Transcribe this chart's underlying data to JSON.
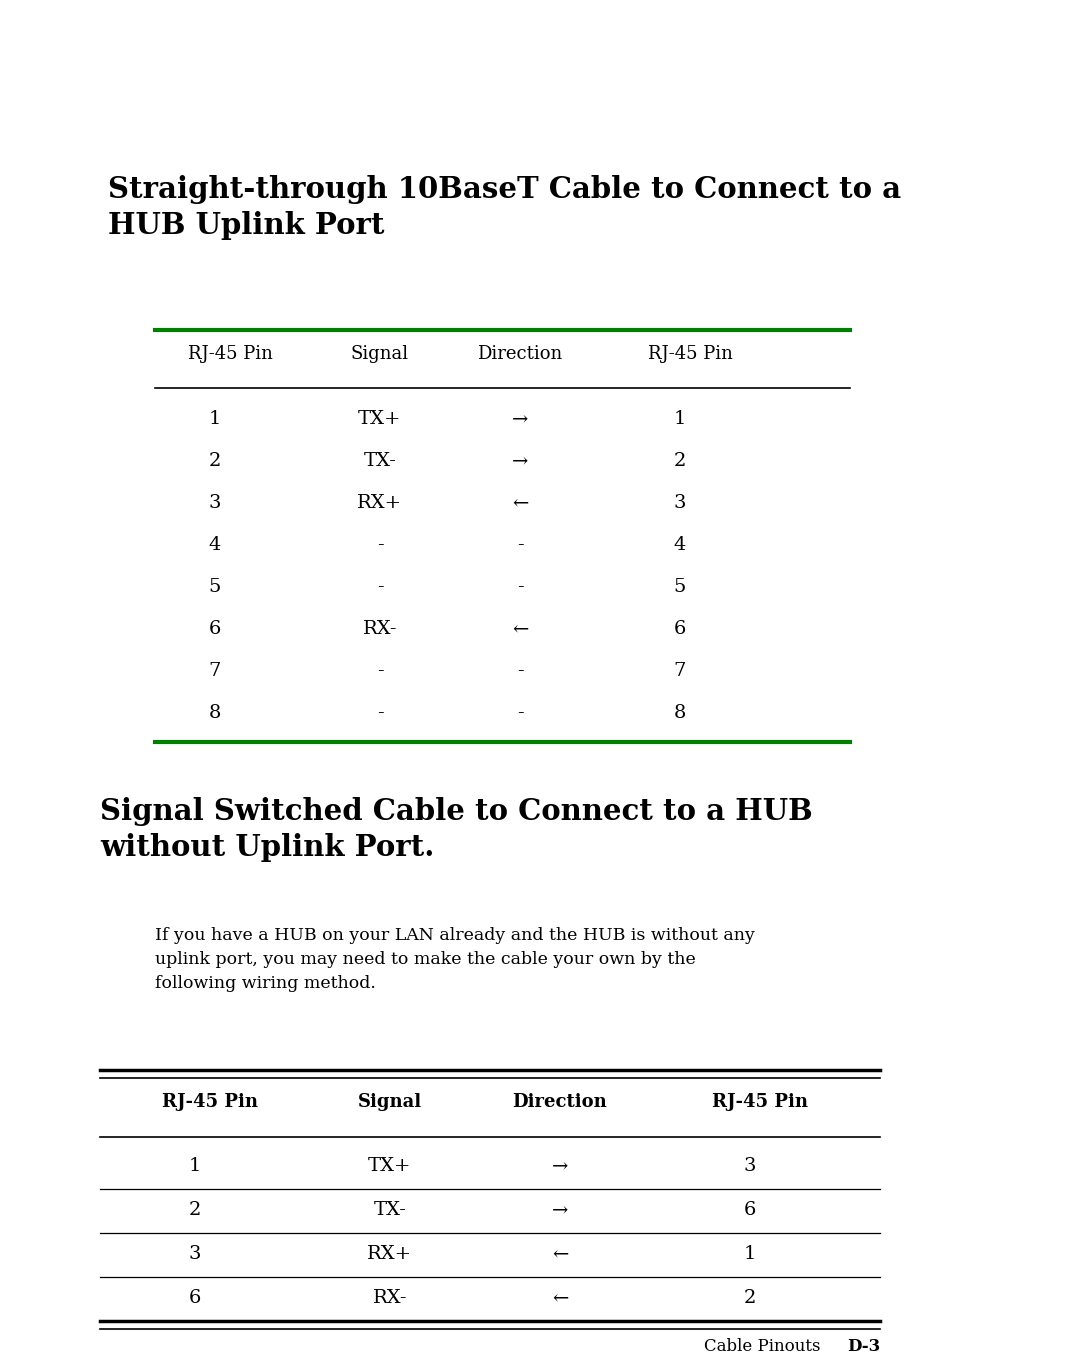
{
  "page_bg": "#ffffff",
  "title1": "Straight-through 10BaseT Cable to Connect to a\nHUB Uplink Port",
  "title2": "Signal Switched Cable to Connect to a HUB\nwithout Uplink Port.",
  "body_text": "If you have a HUB on your LAN already and the HUB is without any\nuplink port, you may need to make the cable your own by the\nfollowing wiring method.",
  "footer_label": "Cable Pinouts",
  "footer_page": "D-3",
  "table1_headers": [
    "RJ-45 Pin",
    "Signal",
    "Direction",
    "RJ-45 Pin"
  ],
  "table1_rows": [
    [
      "1",
      "TX+",
      "→",
      "1"
    ],
    [
      "2",
      "TX-",
      "→",
      "2"
    ],
    [
      "3",
      "RX+",
      "←",
      "3"
    ],
    [
      "4",
      "-",
      "-",
      "4"
    ],
    [
      "5",
      "-",
      "-",
      "5"
    ],
    [
      "6",
      "RX-",
      "←",
      "6"
    ],
    [
      "7",
      "-",
      "-",
      "7"
    ],
    [
      "8",
      "-",
      "-",
      "8"
    ]
  ],
  "table2_headers": [
    "RJ-45 Pin",
    "Signal",
    "Direction",
    "RJ-45 Pin"
  ],
  "table2_rows": [
    [
      "1",
      "TX+",
      "→",
      "3"
    ],
    [
      "2",
      "TX-",
      "→",
      "6"
    ],
    [
      "3",
      "RX+",
      "←",
      "1"
    ],
    [
      "6",
      "RX-",
      "←",
      "2"
    ]
  ],
  "green_color": "#008000",
  "black_color": "#000000"
}
